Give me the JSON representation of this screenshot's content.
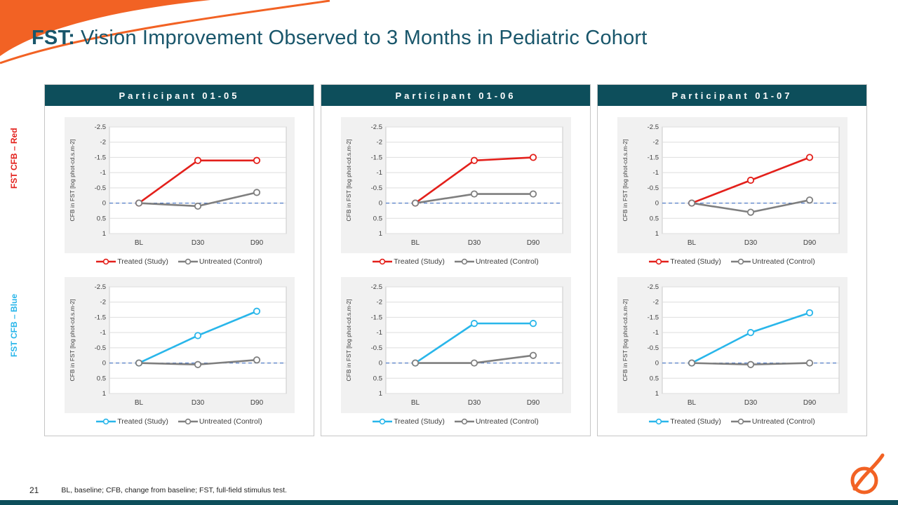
{
  "slide": {
    "title_prefix": "FST:",
    "title_rest": "Vision Improvement Observed to 3 Months in Pediatric Cohort",
    "page_number": "21",
    "footnote": "BL, baseline; CFB, change from baseline; FST, full-field stimulus test."
  },
  "colors": {
    "header_teal": "#0d4e5b",
    "title_teal": "#19566b",
    "treated_red": "#e3201b",
    "treated_blue": "#29b6ea",
    "untreated_gray": "#7f7f7f",
    "zero_line_blue": "#4472c4",
    "accent_orange": "#f26224"
  },
  "rows": [
    {
      "key": "red",
      "label": "FST CFB – Red",
      "color": "#e3201b"
    },
    {
      "key": "blue",
      "label": "FST CFB – Blue",
      "color": "#29b6ea"
    }
  ],
  "participants": [
    "Participant 01-05",
    "Participant 01-06",
    "Participant 01-07"
  ],
  "chart_data": [
    {
      "type": "line",
      "participant": "Participant 01-05",
      "row": "red",
      "title": "",
      "xlabel": "",
      "ylabel": "CFB in FST [log phot-cd.s.m-2]",
      "x": [
        "BL",
        "D30",
        "D90"
      ],
      "ytick_labels": [
        "-2.5",
        "-2",
        "-1.5",
        "-1",
        "-0.5",
        "0",
        "0.5",
        "1"
      ],
      "yticks": [
        -2.5,
        -2,
        -1.5,
        -1,
        -0.5,
        0,
        0.5,
        1
      ],
      "ylim": [
        -2.5,
        1
      ],
      "y_axis_inverted": true,
      "grid": true,
      "legend_position": "bottom",
      "series": [
        {
          "name": "Treated (Study)",
          "color": "#e3201b",
          "values": [
            0,
            -1.4,
            -1.4
          ]
        },
        {
          "name": "Untreated (Control)",
          "color": "#7f7f7f",
          "values": [
            0,
            0.1,
            -0.35
          ]
        }
      ]
    },
    {
      "type": "line",
      "participant": "Participant 01-06",
      "row": "red",
      "title": "",
      "xlabel": "",
      "ylabel": "CFB in FST [log phot-cd.s.m-2]",
      "x": [
        "BL",
        "D30",
        "D90"
      ],
      "ytick_labels": [
        "-2.5",
        "-2",
        "-1.5",
        "-1",
        "-0.5",
        "0",
        "0.5",
        "1"
      ],
      "yticks": [
        -2.5,
        -2,
        -1.5,
        -1,
        -0.5,
        0,
        0.5,
        1
      ],
      "ylim": [
        -2.5,
        1
      ],
      "y_axis_inverted": true,
      "grid": true,
      "legend_position": "bottom",
      "series": [
        {
          "name": "Treated (Study)",
          "color": "#e3201b",
          "values": [
            0,
            -1.4,
            -1.5
          ]
        },
        {
          "name": "Untreated (Control)",
          "color": "#7f7f7f",
          "values": [
            0,
            -0.3,
            -0.3
          ]
        }
      ]
    },
    {
      "type": "line",
      "participant": "Participant 01-07",
      "row": "red",
      "title": "",
      "xlabel": "",
      "ylabel": "CFB in FST [log phot-cd.s.m-2]",
      "x": [
        "BL",
        "D30",
        "D90"
      ],
      "ytick_labels": [
        "-2.5",
        "-2",
        "-1.5",
        "-1",
        "-0.5",
        "0",
        "0.5",
        "1"
      ],
      "yticks": [
        -2.5,
        -2,
        -1.5,
        -1,
        -0.5,
        0,
        0.5,
        1
      ],
      "ylim": [
        -2.5,
        1
      ],
      "y_axis_inverted": true,
      "grid": true,
      "legend_position": "bottom",
      "series": [
        {
          "name": "Treated (Study)",
          "color": "#e3201b",
          "values": [
            0,
            -0.75,
            -1.5
          ]
        },
        {
          "name": "Untreated (Control)",
          "color": "#7f7f7f",
          "values": [
            0,
            0.3,
            -0.1
          ]
        }
      ]
    },
    {
      "type": "line",
      "participant": "Participant 01-05",
      "row": "blue",
      "title": "",
      "xlabel": "",
      "ylabel": "CFB in FST [log phot-cd.s.m-2]",
      "x": [
        "BL",
        "D30",
        "D90"
      ],
      "ytick_labels": [
        "-2.5",
        "-2",
        "-1.5",
        "-1",
        "-0.5",
        "0",
        "0.5",
        "1"
      ],
      "yticks": [
        -2.5,
        -2,
        -1.5,
        -1,
        -0.5,
        0,
        0.5,
        1
      ],
      "ylim": [
        -2.5,
        1
      ],
      "y_axis_inverted": true,
      "grid": true,
      "legend_position": "bottom",
      "series": [
        {
          "name": "Treated (Study)",
          "color": "#29b6ea",
          "values": [
            0,
            -0.9,
            -1.7
          ]
        },
        {
          "name": "Untreated (Control)",
          "color": "#7f7f7f",
          "values": [
            0,
            0.05,
            -0.1
          ]
        }
      ]
    },
    {
      "type": "line",
      "participant": "Participant 01-06",
      "row": "blue",
      "title": "",
      "xlabel": "",
      "ylabel": "CFB in FST [log phot-cd.s.m-2]",
      "x": [
        "BL",
        "D30",
        "D90"
      ],
      "ytick_labels": [
        "-2.5",
        "-2",
        "-1.5",
        "-1",
        "-0.5",
        "0",
        "0.5",
        "1"
      ],
      "yticks": [
        -2.5,
        -2,
        -1.5,
        -1,
        -0.5,
        0,
        0.5,
        1
      ],
      "ylim": [
        -2.5,
        1
      ],
      "y_axis_inverted": true,
      "grid": true,
      "legend_position": "bottom",
      "series": [
        {
          "name": "Treated (Study)",
          "color": "#29b6ea",
          "values": [
            0,
            -1.3,
            -1.3
          ]
        },
        {
          "name": "Untreated (Control)",
          "color": "#7f7f7f",
          "values": [
            0,
            0,
            -0.25
          ]
        }
      ]
    },
    {
      "type": "line",
      "participant": "Participant 01-07",
      "row": "blue",
      "title": "",
      "xlabel": "",
      "ylabel": "CFB in FST [log phot-cd.s.m-2]",
      "x": [
        "BL",
        "D30",
        "D90"
      ],
      "ytick_labels": [
        "-2.5",
        "-2",
        "-1.5",
        "-1",
        "-0.5",
        "0",
        "0.5",
        "1"
      ],
      "yticks": [
        -2.5,
        -2,
        -1.5,
        -1,
        -0.5,
        0,
        0.5,
        1
      ],
      "ylim": [
        -2.5,
        1
      ],
      "y_axis_inverted": true,
      "grid": true,
      "legend_position": "bottom",
      "series": [
        {
          "name": "Treated (Study)",
          "color": "#29b6ea",
          "values": [
            0,
            -1.0,
            -1.65
          ]
        },
        {
          "name": "Untreated (Control)",
          "color": "#7f7f7f",
          "values": [
            0,
            0.05,
            0
          ]
        }
      ]
    }
  ]
}
